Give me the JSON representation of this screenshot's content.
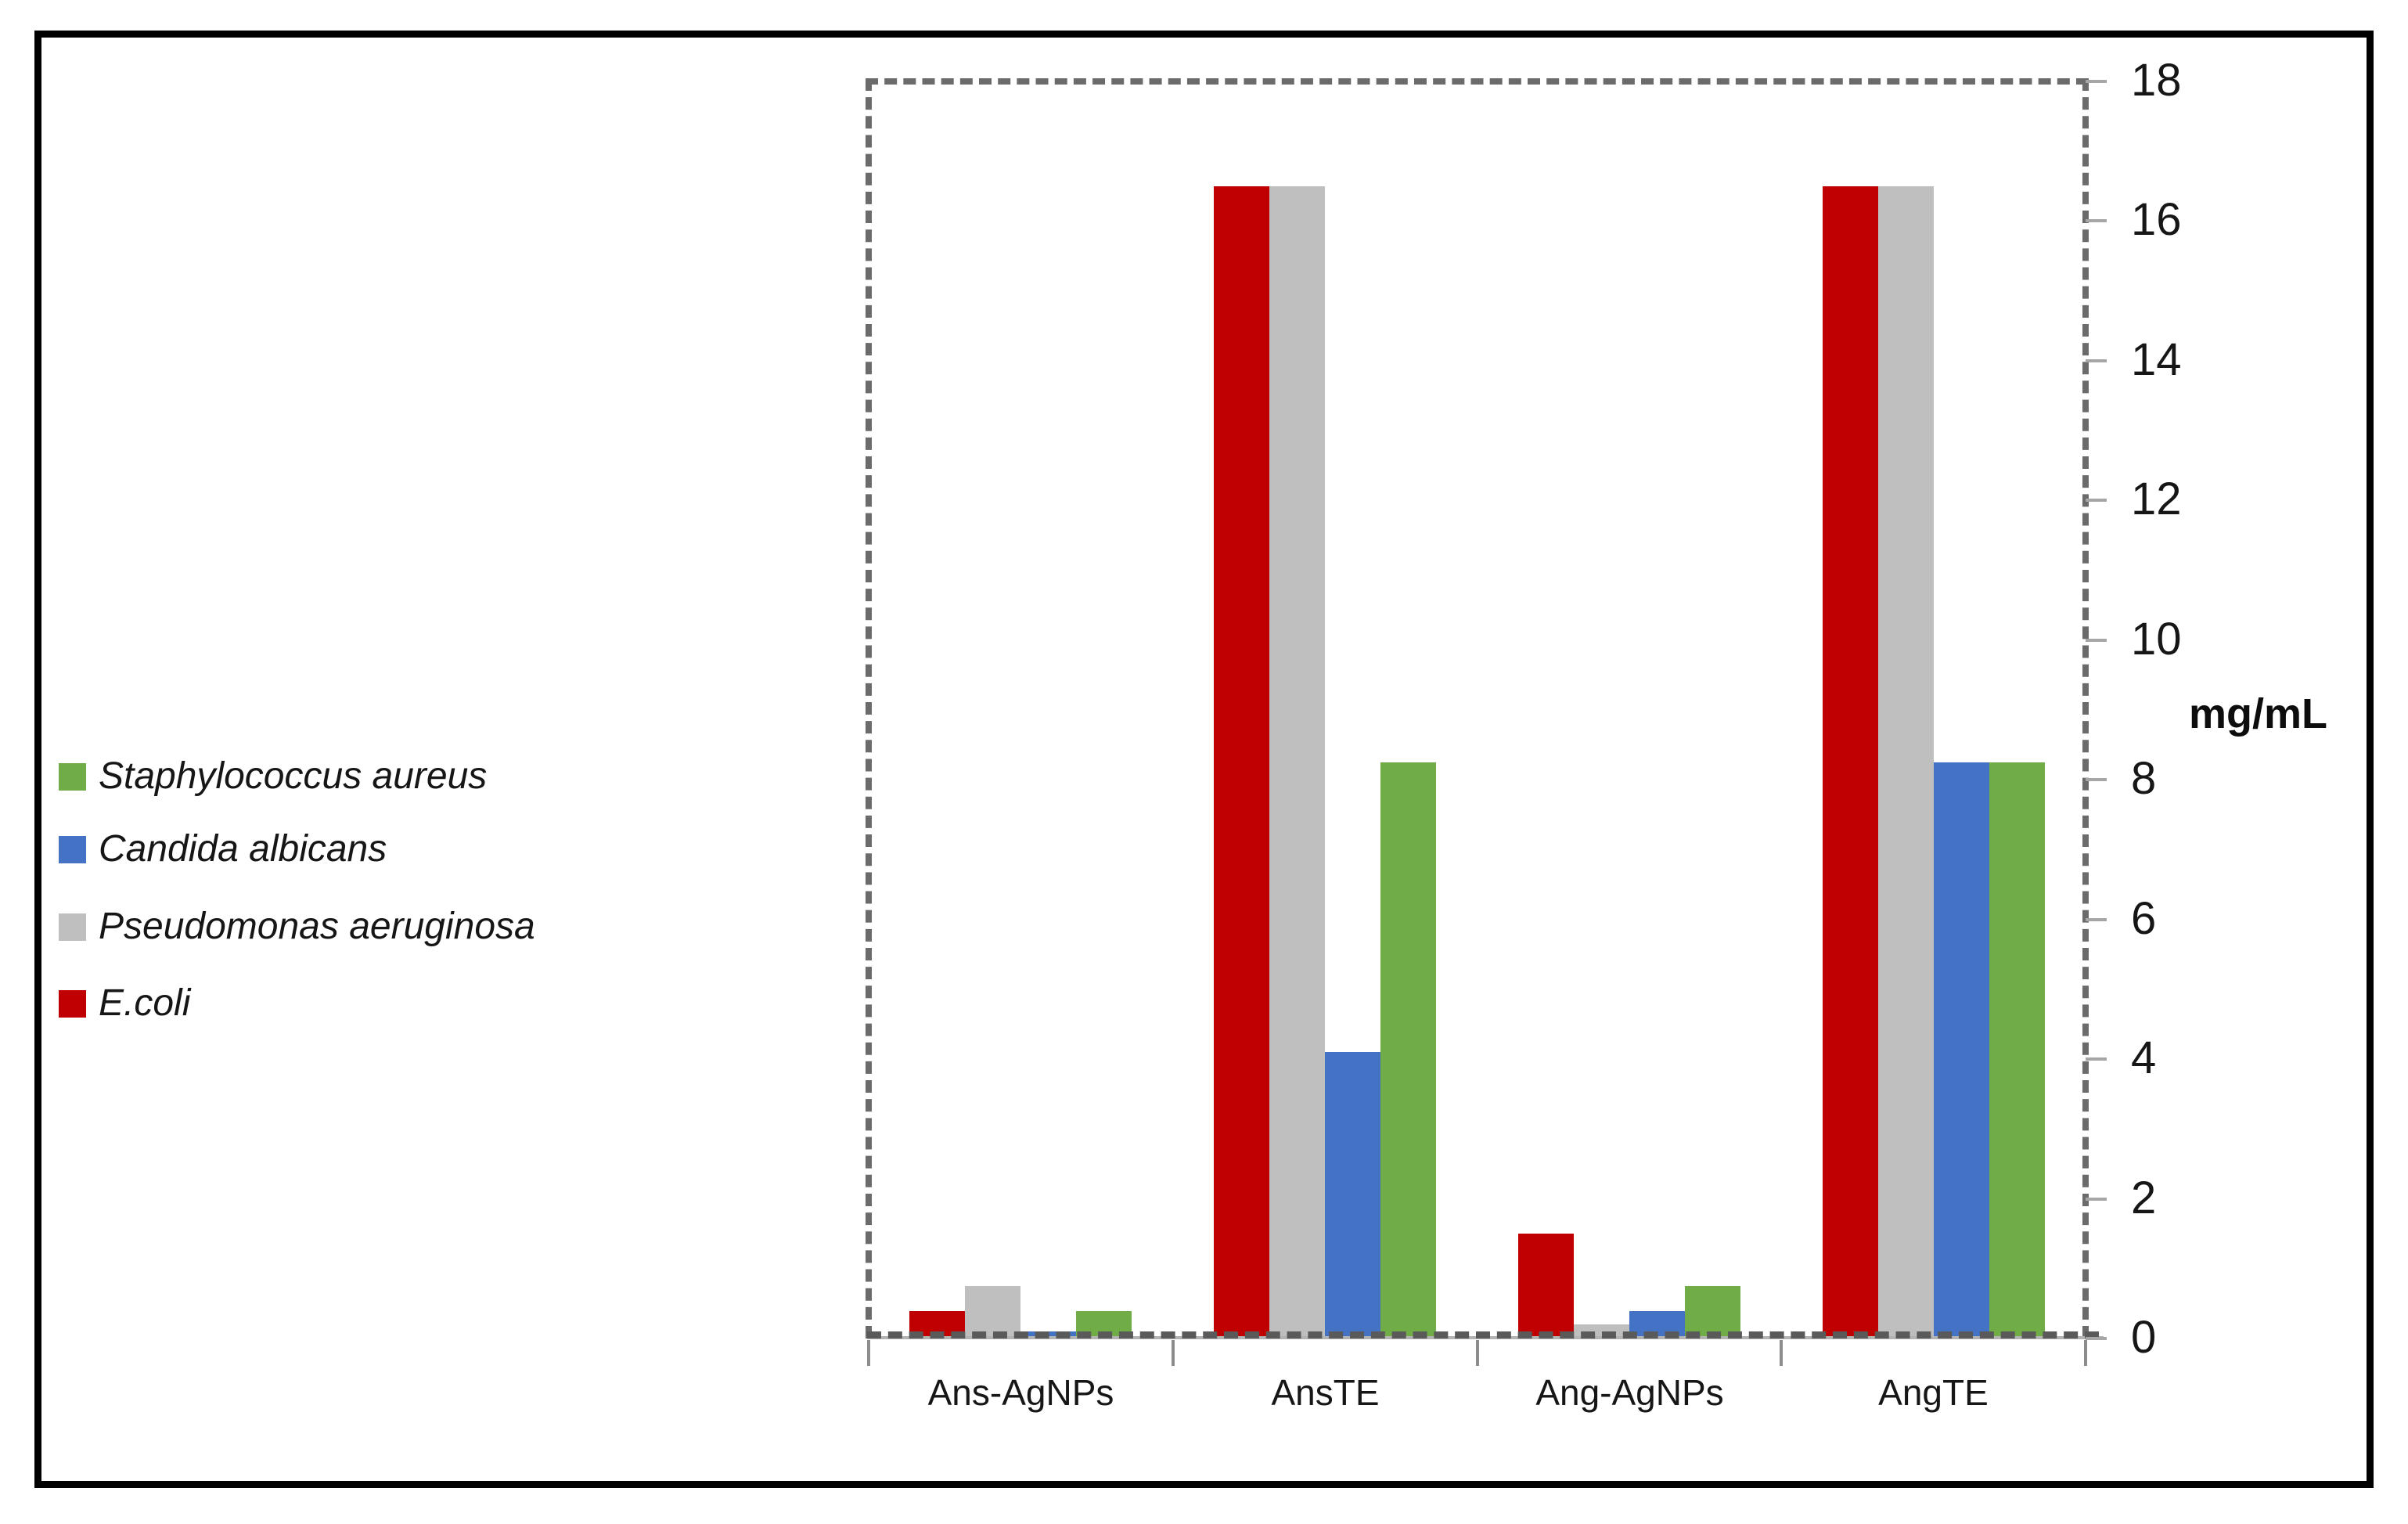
{
  "figure": {
    "background": "#ffffff",
    "frame_color": "#000000",
    "plot_border_style": "dashed",
    "plot_border_color": "#6b6b6b"
  },
  "legend": {
    "position": "left",
    "items": [
      {
        "label": "Staphylococcus aureus",
        "color": "#70ad47"
      },
      {
        "label": "Candida albicans",
        "color": "#4472c4"
      },
      {
        "label": "Pseudomonas aeruginosa",
        "color": "#bfbfbf"
      },
      {
        "label": "E.coli",
        "color": "#c00000"
      }
    ]
  },
  "chart_data": {
    "type": "bar",
    "title": "",
    "xlabel": "",
    "ylabel": "mg/mL",
    "ylim": [
      0,
      18
    ],
    "ytick_step": 2,
    "yticks": [
      0,
      2,
      4,
      6,
      8,
      10,
      12,
      14,
      16,
      18
    ],
    "y_axis_side": "right",
    "grid": false,
    "legend_position": "left",
    "categories": [
      "Ans-AgNPs",
      "AnsTE",
      "Ang-AgNPs",
      "AngTE"
    ],
    "series": [
      {
        "name": "E.coli",
        "color": "#c00000",
        "values": [
          0.39,
          16.5,
          1.5,
          16.5
        ]
      },
      {
        "name": "Pseudomonas aeruginosa",
        "color": "#bfbfbf",
        "values": [
          0.75,
          16.5,
          0.2,
          16.5
        ]
      },
      {
        "name": "Candida albicans",
        "color": "#4472c4",
        "values": [
          0.1,
          4.1,
          0.39,
          8.25
        ]
      },
      {
        "name": "Staphylococcus aureus",
        "color": "#70ad47",
        "values": [
          0.39,
          8.25,
          0.75,
          8.25
        ]
      }
    ]
  }
}
